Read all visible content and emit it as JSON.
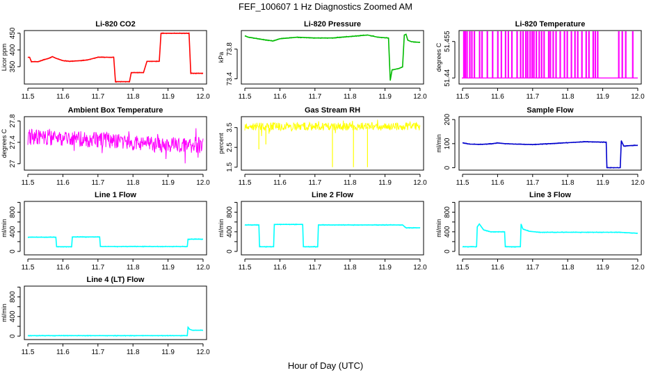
{
  "figure": {
    "title": "FEF_100607  1 Hz Diagnostics Zoomed AM",
    "xlabel": "Hour of Day (UTC)"
  },
  "chart_data": [
    {
      "type": "line",
      "title": "Li-820 CO2",
      "ylabel": "Licor ppm",
      "color": "#ff0000",
      "xlim": [
        11.49,
        12.01
      ],
      "ylim": [
        298,
        458
      ],
      "xticks": [
        "11.5",
        "11.6",
        "11.7",
        "11.8",
        "11.9",
        "12.0"
      ],
      "yticks": [
        350,
        400,
        450
      ],
      "x": [
        11.5,
        11.505,
        11.51,
        11.53,
        11.55,
        11.56,
        11.57,
        11.58,
        11.6,
        11.62,
        11.65,
        11.67,
        11.7,
        11.71,
        11.745,
        11.75,
        11.755,
        11.79,
        11.795,
        11.83,
        11.84,
        11.875,
        11.88,
        11.96,
        11.965,
        11.98,
        12.0
      ],
      "y": [
        378,
        378,
        365,
        365,
        372,
        375,
        380,
        375,
        368,
        366,
        368,
        370,
        378,
        378,
        378,
        305,
        305,
        305,
        332,
        332,
        366,
        366,
        450,
        450,
        330,
        330,
        330
      ]
    },
    {
      "type": "line",
      "title": "Li-820 Pressure",
      "ylabel": "kPa",
      "color": "#00bb00",
      "xlim": [
        11.49,
        12.01
      ],
      "ylim": [
        73.33,
        74.05
      ],
      "xticks": [
        "11.5",
        "11.6",
        "11.7",
        "11.8",
        "11.9",
        "12.0"
      ],
      "yticks": [
        73.4,
        73.8
      ],
      "x": [
        11.5,
        11.51,
        11.55,
        11.58,
        11.6,
        11.65,
        11.7,
        11.75,
        11.8,
        11.85,
        11.88,
        11.91,
        11.915,
        11.92,
        11.93,
        11.94,
        11.95,
        11.955,
        11.96,
        11.965,
        11.975,
        12.0
      ],
      "y": [
        73.98,
        73.96,
        73.93,
        73.91,
        73.94,
        73.96,
        73.95,
        73.95,
        73.97,
        73.99,
        73.96,
        73.95,
        73.38,
        73.52,
        73.53,
        73.54,
        73.56,
        73.99,
        74.0,
        73.92,
        73.9,
        73.89
      ]
    },
    {
      "type": "line",
      "title": "Li-820 Temperature",
      "ylabel": "degrees C",
      "color": "#ff00ff",
      "xlim": [
        11.49,
        12.01
      ],
      "ylim": [
        51.4375,
        51.4595
      ],
      "xticks": [
        "11.5",
        "11.6",
        "11.7",
        "11.8",
        "11.9",
        "12.0"
      ],
      "yticks": [
        51.44,
        51.455
      ],
      "low": 51.44,
      "high": 51.4595,
      "spikes_x": [
        11.503,
        11.507,
        11.512,
        11.52,
        11.526,
        11.533,
        11.548,
        11.555,
        11.57,
        11.585,
        11.6,
        11.61,
        11.622,
        11.63,
        11.64,
        11.655,
        11.665,
        11.672,
        11.68,
        11.685,
        11.692,
        11.698,
        11.703,
        11.71,
        11.718,
        11.725,
        11.732,
        11.745,
        11.75,
        11.758,
        11.766,
        11.778,
        11.79,
        11.798,
        11.81,
        11.82,
        11.828,
        11.84,
        11.852,
        11.86,
        11.872,
        11.878,
        11.885,
        11.945,
        11.955,
        11.965,
        11.985
      ]
    },
    {
      "type": "line",
      "title": "Ambient Box Temperature",
      "ylabel": "degrees C",
      "color": "#ff00ff",
      "xlim": [
        11.49,
        12.01
      ],
      "ylim": [
        26.88,
        27.88
      ],
      "xticks": [
        "11.5",
        "11.6",
        "11.7",
        "11.8",
        "11.9",
        "12.0"
      ],
      "yticks": [
        27.0,
        27.4,
        27.8
      ],
      "x": [
        11.5,
        11.6,
        11.7,
        11.8,
        11.9,
        12.0
      ],
      "y": [
        27.5,
        27.47,
        27.45,
        27.4,
        27.35,
        27.35
      ],
      "band": 0.15
    },
    {
      "type": "line",
      "title": "Gas Stream RH",
      "ylabel": "percent",
      "color": "#ffff00",
      "xlim": [
        11.49,
        12.01
      ],
      "ylim": [
        1.35,
        4.05
      ],
      "xticks": [
        "11.5",
        "11.6",
        "11.7",
        "11.8",
        "11.9",
        "12.0"
      ],
      "yticks": [
        1.5,
        2.5,
        3.5
      ],
      "x": [
        11.5,
        12.0
      ],
      "y": [
        3.55,
        3.55
      ],
      "band": 0.2,
      "dips": [
        [
          11.54,
          2.4
        ],
        [
          11.56,
          2.65
        ],
        [
          11.75,
          1.5
        ],
        [
          11.81,
          1.5
        ],
        [
          11.85,
          1.5
        ]
      ]
    },
    {
      "type": "line",
      "title": "Sample Flow",
      "ylabel": "ml/min",
      "color": "#0000cc",
      "xlim": [
        11.49,
        12.01
      ],
      "ylim": [
        -10,
        212
      ],
      "xticks": [
        "11.5",
        "11.6",
        "11.7",
        "11.8",
        "11.9",
        "12.0"
      ],
      "yticks": [
        0,
        100,
        200
      ],
      "x": [
        11.5,
        11.52,
        11.55,
        11.58,
        11.6,
        11.62,
        11.65,
        11.7,
        11.75,
        11.8,
        11.85,
        11.91,
        11.912,
        11.95,
        11.953,
        11.96,
        11.98,
        12.0
      ],
      "y": [
        104,
        98,
        97,
        99,
        103,
        100,
        98,
        96,
        100,
        104,
        108,
        106,
        0,
        0,
        112,
        90,
        92,
        93
      ]
    },
    {
      "type": "line",
      "title": "Line 1 Flow",
      "ylabel": "ml/min",
      "color": "#00ffff",
      "xlim": [
        11.49,
        12.01
      ],
      "ylim": [
        -70,
        1020
      ],
      "xticks": [
        "11.5",
        "11.6",
        "11.7",
        "11.8",
        "11.9",
        "12.0"
      ],
      "yticks": [
        0,
        400,
        800
      ],
      "yticks_minor": [
        200,
        600,
        1000
      ],
      "x": [
        11.5,
        11.58,
        11.582,
        11.625,
        11.627,
        11.705,
        11.707,
        11.955,
        11.957,
        12.0
      ],
      "y": [
        290,
        290,
        95,
        95,
        295,
        295,
        100,
        100,
        250,
        250
      ]
    },
    {
      "type": "line",
      "title": "Line 2 Flow",
      "ylabel": "ml/min",
      "color": "#00ffff",
      "xlim": [
        11.49,
        12.01
      ],
      "ylim": [
        -70,
        1020
      ],
      "xticks": [
        "11.5",
        "11.6",
        "11.7",
        "11.8",
        "11.9",
        "12.0"
      ],
      "yticks": [
        0,
        400,
        800
      ],
      "yticks_minor": [
        200,
        600,
        1000
      ],
      "x": [
        11.5,
        11.54,
        11.542,
        11.582,
        11.584,
        11.665,
        11.667,
        11.708,
        11.71,
        11.95,
        11.96,
        12.0
      ],
      "y": [
        540,
        540,
        95,
        95,
        550,
        550,
        95,
        95,
        540,
        540,
        480,
        480
      ]
    },
    {
      "type": "line",
      "title": "Line 3 Flow",
      "ylabel": "ml/min",
      "color": "#00ffff",
      "xlim": [
        11.49,
        12.01
      ],
      "ylim": [
        -70,
        1020
      ],
      "xticks": [
        "11.5",
        "11.6",
        "11.7",
        "11.8",
        "11.9",
        "12.0"
      ],
      "yticks": [
        0,
        400,
        800
      ],
      "yticks_minor": [
        200,
        600,
        1000
      ],
      "x": [
        11.5,
        11.54,
        11.542,
        11.548,
        11.56,
        11.58,
        11.62,
        11.622,
        11.665,
        11.667,
        11.672,
        11.69,
        11.72,
        11.95,
        12.0
      ],
      "y": [
        95,
        95,
        500,
        560,
        440,
        400,
        400,
        95,
        95,
        560,
        460,
        410,
        390,
        390,
        370
      ]
    },
    {
      "type": "line",
      "title": "Line 4 (LT) Flow",
      "ylabel": "ml/min",
      "color": "#00ffff",
      "xlim": [
        11.49,
        12.01
      ],
      "ylim": [
        -70,
        1020
      ],
      "xticks": [
        "11.5",
        "11.6",
        "11.7",
        "11.8",
        "11.9",
        "12.0"
      ],
      "yticks": [
        0,
        400,
        800
      ],
      "yticks_minor": [
        200,
        600,
        1000
      ],
      "x": [
        11.5,
        11.955,
        11.957,
        11.962,
        11.97,
        12.0
      ],
      "y": [
        10,
        10,
        180,
        140,
        120,
        120
      ]
    }
  ]
}
